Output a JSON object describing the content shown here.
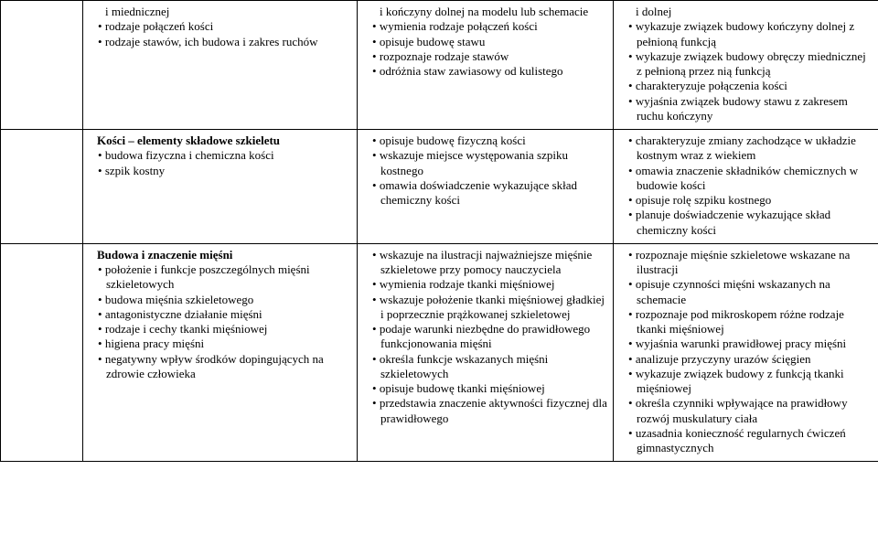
{
  "colors": {
    "text": "#000000",
    "border": "#000000",
    "background": "#ffffff"
  },
  "typography": {
    "fontFamily": "Times New Roman",
    "fontSizePt": 10,
    "boldTitles": true
  },
  "layout": {
    "widthPx": 960,
    "heightPx": 596,
    "columns": 4,
    "colWidthsPx": [
      90,
      300,
      280,
      290
    ]
  },
  "rows": [
    {
      "col1": {
        "continuation": "i miednicznej",
        "items": [
          "rodzaje połączeń kości",
          "rodzaje stawów, ich budowa i zakres ruchów"
        ]
      },
      "col2": {
        "continuation": "i kończyny dolnej na modelu lub schemacie",
        "items": [
          "wymienia rodzaje połączeń kości",
          "opisuje budowę stawu",
          "rozpoznaje rodzaje stawów",
          "odróżnia staw zawiasowy od kulistego"
        ]
      },
      "col3": {
        "continuation": "i dolnej",
        "items": [
          "wykazuje związek budowy kończyny dolnej z pełnioną funkcją",
          "wykazuje związek budowy obręczy miednicznej z pełnioną przez nią funkcją",
          "charakteryzuje połączenia kości",
          "wyjaśnia związek budowy stawu z zakresem ruchu kończyny"
        ]
      }
    },
    {
      "col1": {
        "title": "Kości – elementy składowe szkieletu",
        "items": [
          "budowa fizyczna i chemiczna kości",
          "szpik kostny"
        ]
      },
      "col2": {
        "items": [
          "opisuje budowę fizyczną kości",
          "wskazuje miejsce występowania szpiku kostnego",
          "omawia doświadczenie wykazujące skład chemiczny kości"
        ]
      },
      "col3": {
        "items": [
          "charakteryzuje zmiany zachodzące w układzie kostnym wraz z wiekiem",
          "omawia znaczenie składników chemicznych w budowie kości",
          "opisuje rolę szpiku kostnego",
          "planuje doświadczenie wykazujące skład chemiczny kości"
        ]
      }
    },
    {
      "col1": {
        "title": "Budowa i znaczenie mięśni",
        "items": [
          "położenie i funkcje poszczególnych mięśni szkieletowych",
          "budowa mięśnia szkieletowego",
          "antagonistyczne działanie mięśni",
          "rodzaje i cechy tkanki mięśniowej",
          "higiena pracy mięśni",
          "negatywny wpływ środków dopingujących na zdrowie człowieka"
        ]
      },
      "col2": {
        "items": [
          "wskazuje na ilustracji najważniejsze mięśnie szkieletowe przy pomocy nauczyciela",
          "wymienia rodzaje tkanki mięśniowej",
          "wskazuje położenie tkanki mięśniowej gładkiej i poprzecznie prążkowanej szkieletowej",
          "podaje warunki niezbędne do prawidłowego funkcjonowania mięśni",
          "określa funkcje wskazanych mięśni szkieletowych",
          "opisuje budowę tkanki mięśniowej",
          "przedstawia znaczenie aktywności fizycznej dla prawidłowego"
        ]
      },
      "col3": {
        "items": [
          "rozpoznaje mięśnie szkieletowe wskazane na ilustracji",
          "opisuje czynności mięśni wskazanych na schemacie",
          "rozpoznaje pod mikroskopem różne rodzaje tkanki mięśniowej",
          "wyjaśnia warunki prawidłowej pracy mięśni",
          "analizuje przyczyny urazów ścięgien",
          "wykazuje związek budowy z funkcją tkanki mięśniowej",
          "określa czynniki wpływające na prawidłowy rozwój muskulatury ciała",
          "uzasadnia konieczność regularnych ćwiczeń gimnastycznych"
        ]
      }
    }
  ]
}
